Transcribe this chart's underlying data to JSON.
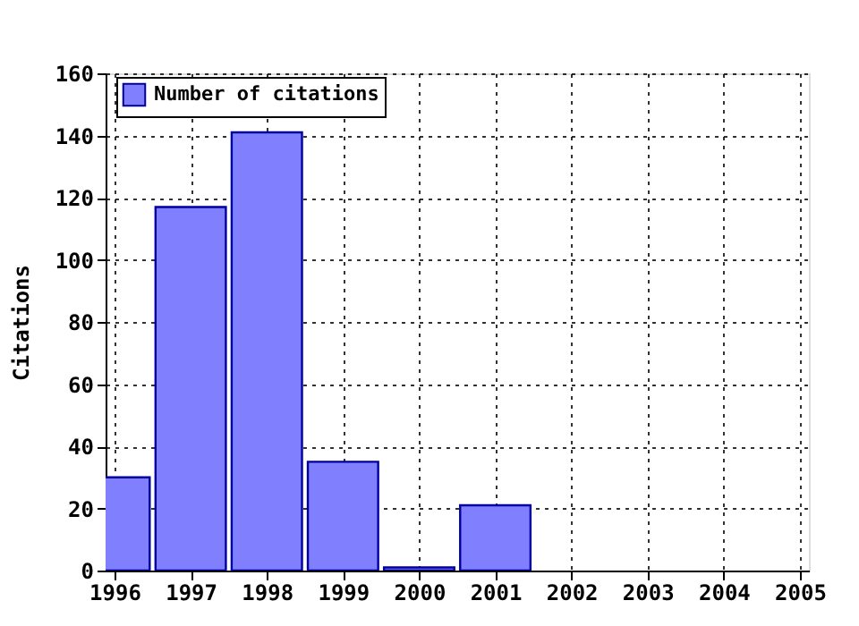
{
  "chart_data": {
    "type": "bar",
    "ylabel": "Citations",
    "x": [
      1996,
      1997,
      1998,
      1999,
      2000,
      2001
    ],
    "series": [
      {
        "name": "Number of citations",
        "color": "#8080ff",
        "values": [
          30,
          117,
          141,
          35,
          1,
          21
        ]
      }
    ],
    "xlim": [
      1996,
      2005
    ],
    "xticks": [
      1996,
      1997,
      1998,
      1999,
      2000,
      2001,
      2002,
      2003,
      2004,
      2005
    ],
    "ylim": [
      0,
      160
    ],
    "yticks": [
      0,
      20,
      40,
      60,
      80,
      100,
      120,
      140,
      160
    ],
    "grid": true,
    "legend": "top left"
  }
}
